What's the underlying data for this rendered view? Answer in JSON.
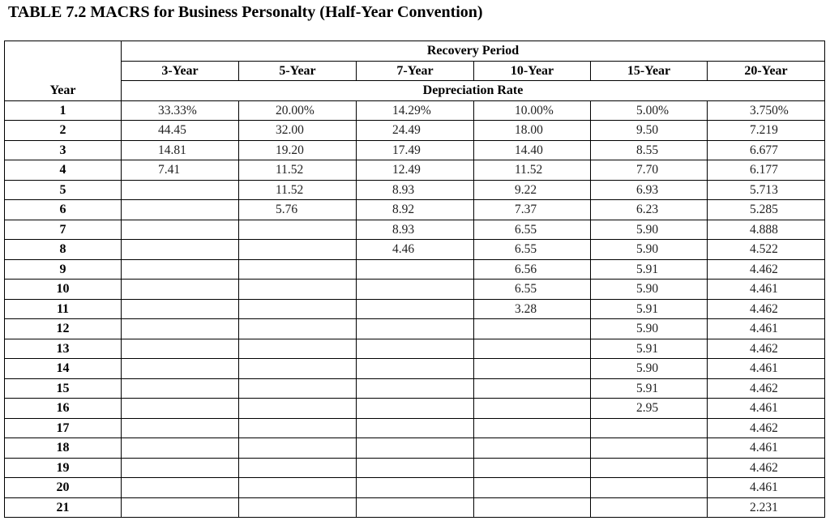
{
  "title": "TABLE 7.2 MACRS for Business Personalty (Half-Year Convention)",
  "header": {
    "recovery_period": "Recovery Period",
    "year": "Year",
    "depreciation_rate": "Depreciation Rate",
    "periods": [
      "3-Year",
      "5-Year",
      "7-Year",
      "10-Year",
      "15-Year",
      "20-Year"
    ]
  },
  "rows": [
    {
      "year": "1",
      "rates": [
        "33.33%",
        "20.00%",
        "14.29%",
        "10.00%",
        "5.00%",
        "3.750%"
      ]
    },
    {
      "year": "2",
      "rates": [
        "44.45",
        "32.00",
        "24.49",
        "18.00",
        "9.50",
        "7.219"
      ]
    },
    {
      "year": "3",
      "rates": [
        "14.81",
        "19.20",
        "17.49",
        "14.40",
        "8.55",
        "6.677"
      ]
    },
    {
      "year": "4",
      "rates": [
        "7.41",
        "11.52",
        "12.49",
        "11.52",
        "7.70",
        "6.177"
      ]
    },
    {
      "year": "5",
      "rates": [
        "",
        "11.52",
        "8.93",
        "9.22",
        "6.93",
        "5.713"
      ]
    },
    {
      "year": "6",
      "rates": [
        "",
        "5.76",
        "8.92",
        "7.37",
        "6.23",
        "5.285"
      ]
    },
    {
      "year": "7",
      "rates": [
        "",
        "",
        "8.93",
        "6.55",
        "5.90",
        "4.888"
      ]
    },
    {
      "year": "8",
      "rates": [
        "",
        "",
        "4.46",
        "6.55",
        "5.90",
        "4.522"
      ]
    },
    {
      "year": "9",
      "rates": [
        "",
        "",
        "",
        "6.56",
        "5.91",
        "4.462"
      ]
    },
    {
      "year": "10",
      "rates": [
        "",
        "",
        "",
        "6.55",
        "5.90",
        "4.461"
      ]
    },
    {
      "year": "11",
      "rates": [
        "",
        "",
        "",
        "3.28",
        "5.91",
        "4.462"
      ]
    },
    {
      "year": "12",
      "rates": [
        "",
        "",
        "",
        "",
        "5.90",
        "4.461"
      ]
    },
    {
      "year": "13",
      "rates": [
        "",
        "",
        "",
        "",
        "5.91",
        "4.462"
      ]
    },
    {
      "year": "14",
      "rates": [
        "",
        "",
        "",
        "",
        "5.90",
        "4.461"
      ]
    },
    {
      "year": "15",
      "rates": [
        "",
        "",
        "",
        "",
        "5.91",
        "4.462"
      ]
    },
    {
      "year": "16",
      "rates": [
        "",
        "",
        "",
        "",
        "2.95",
        "4.461"
      ]
    },
    {
      "year": "17",
      "rates": [
        "",
        "",
        "",
        "",
        "",
        "4.462"
      ]
    },
    {
      "year": "18",
      "rates": [
        "",
        "",
        "",
        "",
        "",
        "4.461"
      ]
    },
    {
      "year": "19",
      "rates": [
        "",
        "",
        "",
        "",
        "",
        "4.462"
      ]
    },
    {
      "year": "20",
      "rates": [
        "",
        "",
        "",
        "",
        "",
        "4.461"
      ]
    },
    {
      "year": "21",
      "rates": [
        "",
        "",
        "",
        "",
        "",
        "2.231"
      ]
    }
  ]
}
